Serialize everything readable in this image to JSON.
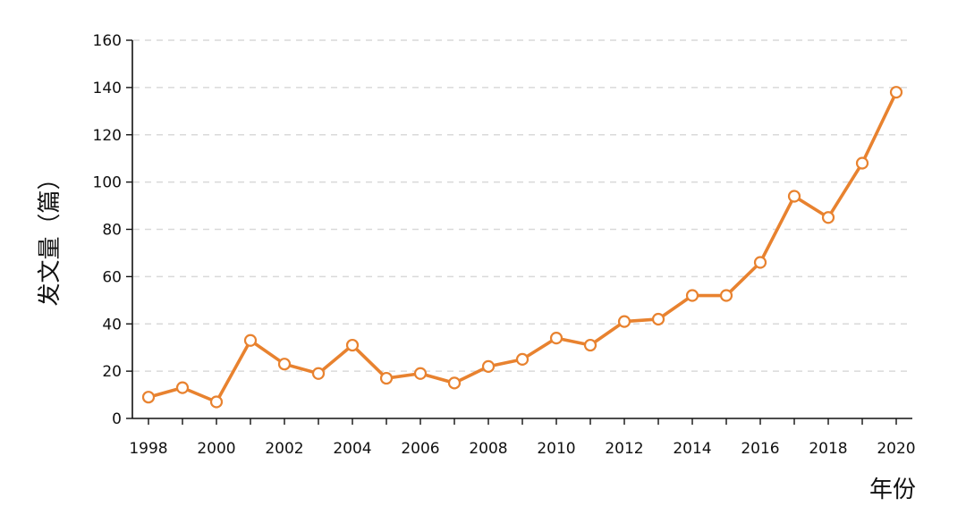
{
  "chart_data": {
    "type": "line",
    "xlabel": "年份",
    "ylabel": "发文量（篇）",
    "ylim": [
      0,
      160
    ],
    "yticks": [
      0,
      20,
      40,
      60,
      80,
      100,
      120,
      140,
      160
    ],
    "xlim": [
      1998,
      2020
    ],
    "xticks": [
      1998,
      2000,
      2002,
      2004,
      2006,
      2008,
      2010,
      2012,
      2014,
      2016,
      2018,
      2020
    ],
    "grid": "horizontal-dashed",
    "series": [
      {
        "color": "#E8822F",
        "x": [
          1998,
          1999,
          2000,
          2001,
          2002,
          2003,
          2004,
          2005,
          2006,
          2007,
          2008,
          2009,
          2010,
          2011,
          2012,
          2013,
          2014,
          2015,
          2016,
          2017,
          2018,
          2019,
          2020
        ],
        "values": [
          9,
          13,
          7,
          33,
          23,
          19,
          31,
          17,
          19,
          15,
          22,
          25,
          34,
          31,
          41,
          42,
          52,
          52,
          66,
          94,
          85,
          108,
          138
        ]
      }
    ]
  }
}
